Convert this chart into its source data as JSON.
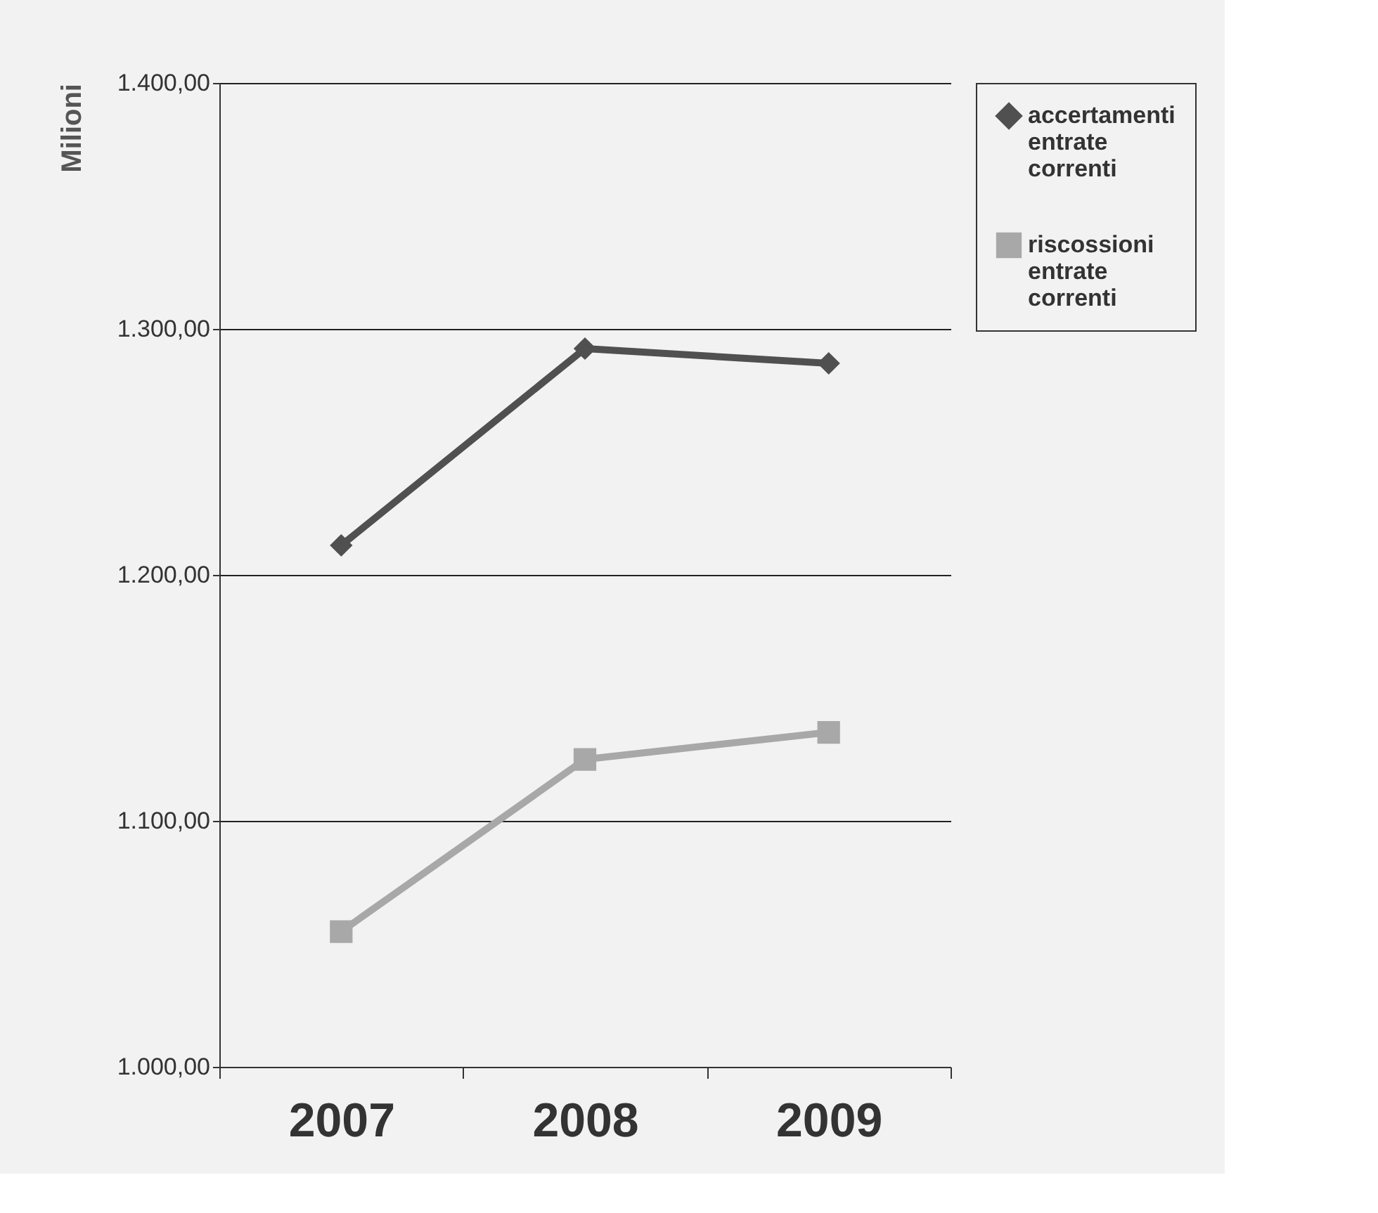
{
  "chart_data": {
    "type": "line",
    "ylabel": "Milioni",
    "categories": [
      "2007",
      "2008",
      "2009"
    ],
    "series": [
      {
        "name": "accertamenti entrate correnti",
        "color": "#505050",
        "marker": "diamond",
        "values": [
          1212,
          1292,
          1286
        ]
      },
      {
        "name": "riscossioni entrate correnti",
        "color": "#a8a8a8",
        "marker": "square",
        "values": [
          1055,
          1125,
          1136
        ]
      }
    ],
    "ylim": [
      1000,
      1400
    ],
    "yticks": [
      {
        "value": 1000,
        "label": "1.000,00"
      },
      {
        "value": 1100,
        "label": "1.100,00"
      },
      {
        "value": 1200,
        "label": "1.200,00"
      },
      {
        "value": 1300,
        "label": "1.300,00"
      },
      {
        "value": 1400,
        "label": "1.400,00"
      }
    ],
    "grid": "y",
    "legend": "right"
  }
}
